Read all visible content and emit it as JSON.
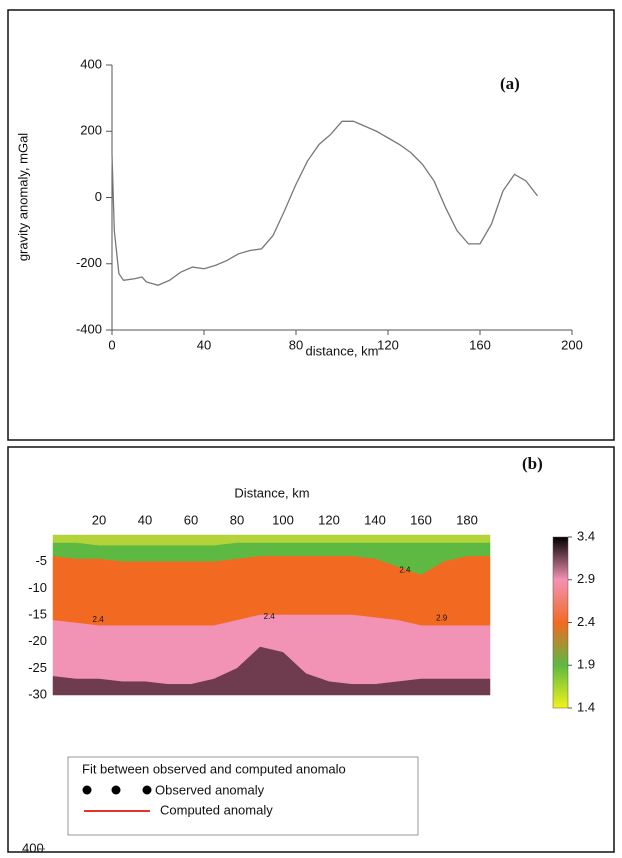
{
  "chart_data": [
    {
      "type": "line",
      "title": "(a)",
      "x_label": "distance, km",
      "y_label": "gravity anomaly, mGal",
      "xlim": [
        0,
        200
      ],
      "xticks": [
        0,
        40,
        80,
        120,
        160,
        200
      ],
      "ylim": [
        -400,
        400
      ],
      "yticks": [
        -400,
        -200,
        0,
        200,
        400
      ],
      "x": [
        0,
        1,
        3,
        5,
        10,
        13,
        15,
        20,
        25,
        30,
        35,
        40,
        45,
        50,
        55,
        60,
        65,
        70,
        75,
        80,
        85,
        90,
        95,
        100,
        105,
        110,
        115,
        120,
        125,
        130,
        135,
        140,
        145,
        150,
        155,
        160,
        165,
        170,
        175,
        180,
        185
      ],
      "series": [
        {
          "color": "#777777",
          "values": [
            130,
            -100,
            -230,
            -250,
            -245,
            -240,
            -255,
            -265,
            -250,
            -225,
            -210,
            -215,
            -205,
            -190,
            -170,
            -160,
            -155,
            -115,
            -40,
            40,
            110,
            160,
            190,
            230,
            230,
            215,
            200,
            180,
            160,
            135,
            100,
            50,
            -30,
            -100,
            -140,
            -140,
            -80,
            20,
            70,
            50,
            5
          ]
        }
      ]
    },
    {
      "type": "layers",
      "title": "(b)",
      "x_label": "Distance, km",
      "xlim": [
        0,
        190
      ],
      "xticks": [
        20,
        40,
        60,
        80,
        100,
        120,
        140,
        160,
        180
      ],
      "ylim": [
        -30,
        0
      ],
      "yticks": [
        -5,
        -10,
        -15,
        -20,
        -25,
        -30
      ],
      "x": [
        0,
        10,
        20,
        30,
        40,
        50,
        60,
        70,
        80,
        90,
        100,
        110,
        120,
        130,
        140,
        150,
        160,
        170,
        180,
        190
      ],
      "layers": [
        {
          "density": 1.7,
          "color": "#b4d23a",
          "bottom": [
            -1.5,
            -1.5,
            -2,
            -2,
            -2,
            -2,
            -2,
            -2,
            -1.5,
            -1.5,
            -1.5,
            -1.5,
            -1.5,
            -1.5,
            -1.5,
            -1.5,
            -1.5,
            -1.5,
            -1.5,
            -1.5
          ]
        },
        {
          "density": 2.0,
          "color": "#5db941",
          "bottom": [
            -4,
            -4.5,
            -4.5,
            -5,
            -5,
            -5,
            -5,
            -5,
            -4.5,
            -4,
            -4,
            -4,
            -4,
            -4,
            -4.5,
            -6,
            -7.5,
            -5,
            -4,
            -4
          ]
        },
        {
          "density": 2.4,
          "color": "#f26a22",
          "bottom": [
            -16,
            -16.5,
            -17,
            -17,
            -17,
            -17,
            -17,
            -17,
            -16,
            -15,
            -15,
            -15,
            -15,
            -15,
            -15.5,
            -16,
            -17,
            -17,
            -17,
            -17
          ]
        },
        {
          "density": 2.8,
          "color": "#f292b4",
          "bottom": [
            -26.5,
            -27,
            -27,
            -27.5,
            -27.5,
            -28,
            -28,
            -27,
            -25,
            -21,
            -22,
            -26,
            -27.5,
            -28,
            -28,
            -27.5,
            -27,
            -27,
            -27,
            -27
          ]
        },
        {
          "density": 3.2,
          "color": "#6e3c4e"
        }
      ],
      "contour_labels": [
        {
          "text": "2.4",
          "x": 153,
          "depth": -6.6
        },
        {
          "text": "2.4",
          "x": 19.6,
          "depth": -15.9
        },
        {
          "text": "2.4",
          "x": 94,
          "depth": -15.4
        },
        {
          "text": "2.9",
          "x": 169,
          "depth": -15.6
        }
      ],
      "colorbar": {
        "range": [
          1.4,
          3.4
        ],
        "ticks": [
          3.4,
          2.9,
          2.4,
          1.9,
          1.4
        ],
        "colors": [
          "#000000",
          "#f292b4",
          "#f26a22",
          "#5db941",
          "#f2f21a"
        ]
      }
    },
    {
      "type": "line",
      "legend_title": "Fit between observed and computed anomalo",
      "yticks": [
        400
      ],
      "series": [
        {
          "name": "Observed anomaly",
          "color": "#000000"
        },
        {
          "name": "Computed anomaly",
          "color": "#e8322a"
        }
      ]
    }
  ]
}
